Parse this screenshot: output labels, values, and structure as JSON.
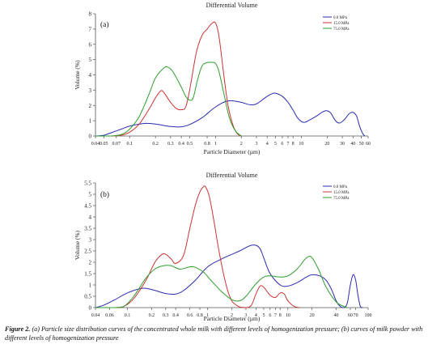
{
  "chart_data": [
    {
      "type": "line",
      "panel_label": "(a)",
      "title": "Differential Volume",
      "xlabel": "Particle Diameter (µm)",
      "ylabel": "Volume (%)",
      "xscale": "log",
      "xlim": [
        0.04,
        60
      ],
      "ylim": [
        0,
        8
      ],
      "x_ticks": [
        0.04,
        0.05,
        0.07,
        0.1,
        0.2,
        0.3,
        0.4,
        0.5,
        0.8,
        1,
        2,
        3,
        4,
        5,
        6,
        7,
        8,
        10,
        20,
        30,
        40,
        50,
        60
      ],
      "x_tick_labels": [
        "0.04",
        "0.05",
        "0.07",
        "0.1",
        "0.2",
        "0.3",
        "0.4",
        "0.5",
        "0.8",
        "1",
        "2",
        "3",
        "4",
        "5",
        "6",
        "7",
        "8",
        "10",
        "20",
        "30",
        "40",
        "50",
        "60"
      ],
      "y_ticks": [
        0,
        1,
        2,
        3,
        4,
        5,
        6,
        7,
        8
      ],
      "y_tick_labels": [
        "0",
        "1",
        "2",
        "3",
        "4",
        "5",
        "6",
        "7",
        "8"
      ],
      "legend_position": "top-right",
      "series": [
        {
          "name": "0.0 MPa",
          "color": "#2b2bb0",
          "points": [
            [
              0.04,
              0
            ],
            [
              0.05,
              0.05
            ],
            [
              0.06,
              0.2
            ],
            [
              0.08,
              0.45
            ],
            [
              0.1,
              0.65
            ],
            [
              0.15,
              0.82
            ],
            [
              0.2,
              0.78
            ],
            [
              0.3,
              0.62
            ],
            [
              0.4,
              0.6
            ],
            [
              0.5,
              0.75
            ],
            [
              0.7,
              1.2
            ],
            [
              1,
              1.9
            ],
            [
              1.4,
              2.3
            ],
            [
              2,
              2.2
            ],
            [
              2.5,
              2.05
            ],
            [
              3,
              2.1
            ],
            [
              4,
              2.6
            ],
            [
              4.5,
              2.75
            ],
            [
              5,
              2.8
            ],
            [
              6,
              2.6
            ],
            [
              7,
              2.2
            ],
            [
              8,
              1.7
            ],
            [
              9,
              1.2
            ],
            [
              10,
              0.95
            ],
            [
              11,
              0.9
            ],
            [
              13,
              1.1
            ],
            [
              15,
              1.3
            ],
            [
              18,
              1.6
            ],
            [
              20,
              1.65
            ],
            [
              22,
              1.5
            ],
            [
              25,
              1.0
            ],
            [
              28,
              0.85
            ],
            [
              32,
              1.1
            ],
            [
              36,
              1.45
            ],
            [
              40,
              1.55
            ],
            [
              44,
              1.3
            ],
            [
              48,
              0.6
            ],
            [
              52,
              0.15
            ],
            [
              55,
              0
            ]
          ]
        },
        {
          "name": "15.0 MPa",
          "color": "#cc3333",
          "points": [
            [
              0.04,
              0
            ],
            [
              0.06,
              0
            ],
            [
              0.08,
              0.05
            ],
            [
              0.1,
              0.25
            ],
            [
              0.13,
              0.8
            ],
            [
              0.17,
              1.8
            ],
            [
              0.2,
              2.5
            ],
            [
              0.23,
              2.95
            ],
            [
              0.25,
              2.85
            ],
            [
              0.3,
              2.2
            ],
            [
              0.35,
              1.8
            ],
            [
              0.4,
              1.72
            ],
            [
              0.45,
              1.9
            ],
            [
              0.5,
              3.0
            ],
            [
              0.6,
              5.5
            ],
            [
              0.7,
              6.6
            ],
            [
              0.8,
              7.0
            ],
            [
              0.9,
              7.35
            ],
            [
              1,
              7.4
            ],
            [
              1.1,
              6.5
            ],
            [
              1.25,
              4.0
            ],
            [
              1.4,
              2.0
            ],
            [
              1.6,
              0.7
            ],
            [
              1.8,
              0.15
            ],
            [
              2,
              0
            ]
          ]
        },
        {
          "name": "75.0 MPa",
          "color": "#2e9e2e",
          "points": [
            [
              0.04,
              0
            ],
            [
              0.06,
              0
            ],
            [
              0.08,
              0.1
            ],
            [
              0.1,
              0.45
            ],
            [
              0.13,
              1.3
            ],
            [
              0.17,
              2.8
            ],
            [
              0.2,
              3.8
            ],
            [
              0.25,
              4.45
            ],
            [
              0.28,
              4.5
            ],
            [
              0.32,
              4.2
            ],
            [
              0.4,
              3.2
            ],
            [
              0.45,
              2.6
            ],
            [
              0.5,
              2.35
            ],
            [
              0.55,
              2.5
            ],
            [
              0.62,
              3.7
            ],
            [
              0.7,
              4.6
            ],
            [
              0.8,
              4.8
            ],
            [
              0.9,
              4.82
            ],
            [
              1,
              4.75
            ],
            [
              1.1,
              4.2
            ],
            [
              1.25,
              2.8
            ],
            [
              1.45,
              1.2
            ],
            [
              1.7,
              0.35
            ],
            [
              2,
              0
            ]
          ]
        }
      ]
    },
    {
      "type": "line",
      "panel_label": "(b)",
      "title": "Differential Volume",
      "xlabel": "Particle Diameter (µm)",
      "ylabel": "Volume (%)",
      "xscale": "log",
      "xlim": [
        0.04,
        100
      ],
      "ylim": [
        0,
        5.5
      ],
      "x_ticks": [
        0.04,
        0.06,
        0.1,
        0.2,
        0.3,
        0.4,
        0.6,
        0.8,
        1,
        2,
        3,
        4,
        5,
        6,
        7,
        8,
        10,
        20,
        40,
        60,
        70,
        100
      ],
      "x_tick_labels": [
        "0.04",
        "0.06",
        "0.1",
        "0.2",
        "0.3",
        "0.4",
        "0.6",
        "0.8",
        "1",
        "2",
        "3",
        "4",
        "5",
        "6",
        "7",
        "8",
        "10",
        "20",
        "40",
        "60",
        "70",
        "100"
      ],
      "y_ticks": [
        0,
        0.5,
        1,
        1.5,
        2,
        2.5,
        3,
        3.5,
        4,
        4.5,
        5,
        5.5
      ],
      "y_tick_labels": [
        "0",
        "0.5",
        "1",
        "1.5",
        "2",
        "2.5",
        "3",
        "3.5",
        "4",
        "4.5",
        "5",
        "5.5"
      ],
      "legend_position": "top-right",
      "series": [
        {
          "name": "0.0 MPa",
          "color": "#2b2bb0",
          "points": [
            [
              0.04,
              0
            ],
            [
              0.05,
              0.1
            ],
            [
              0.07,
              0.35
            ],
            [
              0.1,
              0.65
            ],
            [
              0.15,
              0.85
            ],
            [
              0.2,
              0.8
            ],
            [
              0.3,
              0.62
            ],
            [
              0.4,
              0.6
            ],
            [
              0.5,
              0.75
            ],
            [
              0.7,
              1.2
            ],
            [
              1,
              1.8
            ],
            [
              1.5,
              2.15
            ],
            [
              2,
              2.35
            ],
            [
              2.5,
              2.5
            ],
            [
              3,
              2.65
            ],
            [
              3.5,
              2.75
            ],
            [
              4,
              2.75
            ],
            [
              4.5,
              2.6
            ],
            [
              5,
              2.2
            ],
            [
              6,
              1.5
            ],
            [
              8,
              1.0
            ],
            [
              10,
              0.95
            ],
            [
              13,
              1.1
            ],
            [
              17,
              1.35
            ],
            [
              20,
              1.45
            ],
            [
              25,
              1.4
            ],
            [
              30,
              1.2
            ],
            [
              35,
              0.8
            ],
            [
              40,
              0.3
            ],
            [
              45,
              0.05
            ],
            [
              50,
              0
            ],
            [
              55,
              0.2
            ],
            [
              60,
              1.0
            ],
            [
              65,
              1.45
            ],
            [
              70,
              1.2
            ],
            [
              75,
              0.5
            ],
            [
              80,
              0.05
            ],
            [
              85,
              0
            ]
          ]
        },
        {
          "name": "15.0 MPa",
          "color": "#cc3333",
          "points": [
            [
              0.04,
              0
            ],
            [
              0.07,
              0
            ],
            [
              0.09,
              0.05
            ],
            [
              0.12,
              0.4
            ],
            [
              0.17,
              1.2
            ],
            [
              0.22,
              2.0
            ],
            [
              0.27,
              2.35
            ],
            [
              0.3,
              2.35
            ],
            [
              0.35,
              2.15
            ],
            [
              0.4,
              1.95
            ],
            [
              0.5,
              2.3
            ],
            [
              0.6,
              3.5
            ],
            [
              0.7,
              4.5
            ],
            [
              0.8,
              5.1
            ],
            [
              0.9,
              5.35
            ],
            [
              0.95,
              5.3
            ],
            [
              1.05,
              4.9
            ],
            [
              1.2,
              3.8
            ],
            [
              1.4,
              2.4
            ],
            [
              1.7,
              1.0
            ],
            [
              2,
              0.3
            ],
            [
              2.5,
              0.03
            ],
            [
              3,
              0
            ],
            [
              3.5,
              0.1
            ],
            [
              4,
              0.6
            ],
            [
              4.5,
              0.95
            ],
            [
              5,
              0.9
            ],
            [
              6,
              0.55
            ],
            [
              7,
              0.45
            ],
            [
              8,
              0.65
            ],
            [
              9,
              0.6
            ],
            [
              10,
              0.3
            ],
            [
              12,
              0.05
            ],
            [
              14,
              0
            ]
          ]
        },
        {
          "name": "75.0 MPa",
          "color": "#2e9e2e",
          "points": [
            [
              0.04,
              0
            ],
            [
              0.07,
              0
            ],
            [
              0.09,
              0.05
            ],
            [
              0.12,
              0.5
            ],
            [
              0.17,
              1.3
            ],
            [
              0.22,
              1.7
            ],
            [
              0.28,
              1.85
            ],
            [
              0.35,
              1.85
            ],
            [
              0.45,
              1.7
            ],
            [
              0.6,
              1.8
            ],
            [
              0.7,
              1.78
            ],
            [
              0.9,
              1.55
            ],
            [
              1.1,
              1.2
            ],
            [
              1.5,
              0.7
            ],
            [
              2,
              0.35
            ],
            [
              2.5,
              0.3
            ],
            [
              3,
              0.5
            ],
            [
              4,
              1.05
            ],
            [
              5,
              1.35
            ],
            [
              6,
              1.4
            ],
            [
              8,
              1.35
            ],
            [
              10,
              1.4
            ],
            [
              13,
              1.7
            ],
            [
              16,
              2.1
            ],
            [
              18,
              2.25
            ],
            [
              20,
              2.2
            ],
            [
              24,
              1.7
            ],
            [
              30,
              0.9
            ],
            [
              40,
              0.25
            ],
            [
              50,
              0.05
            ],
            [
              55,
              0
            ]
          ]
        }
      ]
    }
  ],
  "caption": {
    "lead": "Figure 2.",
    "body": " (a) Particle size distribution curves of the concentrated whole milk with different levels of homogenization pressure; (b) curves of milk powder with different levels of homogenization pressure"
  }
}
